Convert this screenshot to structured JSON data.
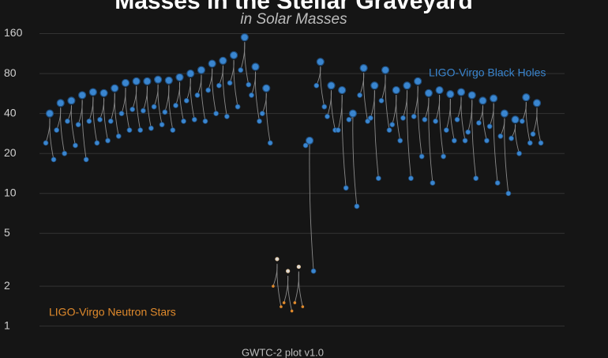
{
  "chart_data": {
    "type": "scatter",
    "title": "Masses in the Stellar Graveyard",
    "subtitle": "in Solar Masses",
    "footer": "GWTC-2 plot v1.0",
    "log_scale": true,
    "grid": true,
    "ylim": [
      0.88,
      190
    ],
    "yticks": [
      1,
      2,
      5,
      10,
      20,
      40,
      80,
      160
    ],
    "categories": [
      null,
      null,
      null,
      null,
      null,
      null,
      null,
      null,
      null,
      null,
      null,
      null,
      null,
      null,
      null,
      null,
      null,
      null,
      null,
      null,
      null,
      null,
      null,
      null,
      null,
      null,
      null,
      null,
      null,
      null,
      null,
      null,
      null,
      null,
      null,
      null,
      null,
      null,
      null,
      null,
      null,
      null,
      null,
      null,
      null,
      null
    ],
    "series": [
      {
        "name": "LIGO-Virgo Black Holes",
        "color": "#3a86d0",
        "remnant": [
          40,
          48,
          50,
          55,
          58,
          57,
          62,
          68,
          70,
          70,
          72,
          71,
          75,
          80,
          85,
          95,
          100,
          110,
          150,
          90,
          62,
          null,
          null,
          null,
          25,
          98,
          65,
          60,
          40,
          88,
          65,
          85,
          60,
          65,
          70,
          57,
          60,
          56,
          58,
          55,
          50,
          52,
          40,
          36,
          53,
          48
        ],
        "primary": [
          24,
          30,
          35,
          33,
          35,
          36,
          35,
          40,
          43,
          42,
          45,
          41,
          46,
          50,
          55,
          60,
          65,
          68,
          85,
          55,
          40,
          null,
          null,
          null,
          23,
          65,
          38,
          30,
          36,
          55,
          37,
          50,
          33,
          37,
          38,
          36,
          35,
          30,
          36,
          29,
          34,
          32,
          27,
          26,
          35,
          28
        ],
        "secondary": [
          18,
          20,
          23,
          18,
          24,
          25,
          27,
          30,
          30,
          31,
          33,
          30,
          35,
          36,
          35,
          40,
          38,
          45,
          66,
          35,
          24,
          null,
          null,
          null,
          2.6,
          45,
          30,
          11,
          8,
          35,
          13,
          30,
          25,
          13,
          19,
          12,
          19,
          25,
          25,
          13,
          25,
          12,
          10,
          20,
          24,
          24
        ]
      },
      {
        "name": "LIGO-Virgo Neutron Stars",
        "color": "#e08a2c",
        "remnant": [
          null,
          null,
          null,
          null,
          null,
          null,
          null,
          null,
          null,
          null,
          null,
          null,
          null,
          null,
          null,
          null,
          null,
          null,
          null,
          null,
          null,
          3.2,
          2.6,
          2.8,
          null,
          null,
          null,
          null,
          null,
          null,
          null,
          null,
          null,
          null,
          null,
          null,
          null,
          null,
          null,
          null,
          null,
          null,
          null,
          null,
          null,
          null
        ],
        "primary": [
          null,
          null,
          null,
          null,
          null,
          null,
          null,
          null,
          null,
          null,
          null,
          null,
          null,
          null,
          null,
          null,
          null,
          null,
          null,
          null,
          null,
          2.0,
          1.5,
          1.5,
          null,
          null,
          null,
          null,
          null,
          null,
          null,
          null,
          null,
          null,
          null,
          null,
          null,
          null,
          null,
          null,
          null,
          null,
          null,
          null,
          null,
          null
        ],
        "secondary": [
          null,
          null,
          null,
          null,
          null,
          null,
          null,
          null,
          null,
          null,
          null,
          null,
          null,
          null,
          null,
          null,
          null,
          null,
          null,
          null,
          null,
          1.4,
          1.3,
          1.4,
          null,
          null,
          null,
          null,
          null,
          null,
          null,
          null,
          null,
          null,
          null,
          null,
          null,
          null,
          null,
          null,
          null,
          null,
          null,
          null,
          null,
          null
        ]
      }
    ]
  }
}
